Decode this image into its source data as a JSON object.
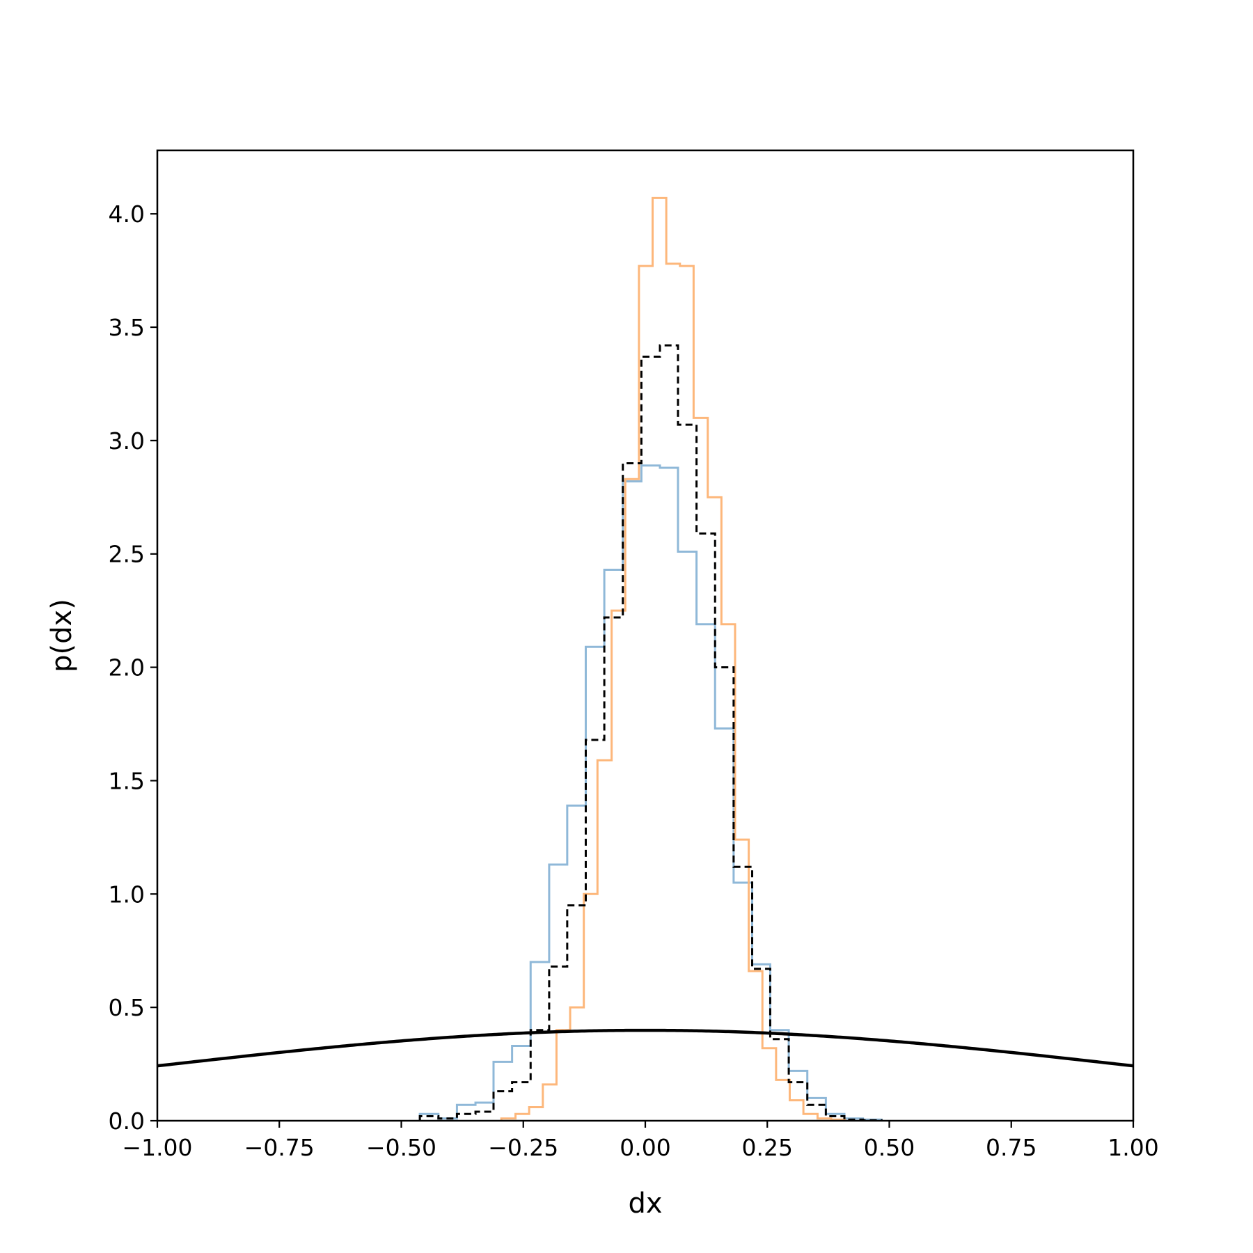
{
  "chart_data": {
    "type": "histogram",
    "title": "",
    "xlabel": "dx",
    "ylabel": "p(dx)",
    "xlim": [
      -1.0,
      1.0
    ],
    "ylim": [
      0.0,
      4.28
    ],
    "grid": false,
    "legend": "none",
    "xticks": [
      "−1.00",
      "−0.75",
      "−0.50",
      "−0.25",
      "0.00",
      "0.25",
      "0.50",
      "0.75",
      "1.00"
    ],
    "xtick_values": [
      -1.0,
      -0.75,
      -0.5,
      -0.25,
      0.0,
      0.25,
      0.5,
      0.75,
      1.0
    ],
    "yticks": [
      "0.0",
      "0.5",
      "1.0",
      "1.5",
      "2.0",
      "2.5",
      "3.0",
      "3.5",
      "4.0"
    ],
    "ytick_values": [
      0.0,
      0.5,
      1.0,
      1.5,
      2.0,
      2.5,
      3.0,
      3.5,
      4.0
    ],
    "series": [
      {
        "kind": "step",
        "color": "#8fb8d8",
        "style": "solid",
        "edges": [
          -0.462,
          -0.424,
          -0.386,
          -0.348,
          -0.311,
          -0.273,
          -0.235,
          -0.197,
          -0.16,
          -0.122,
          -0.084,
          -0.046,
          -0.008,
          0.03,
          0.067,
          0.105,
          0.143,
          0.181,
          0.219,
          0.256,
          0.294,
          0.332,
          0.37,
          0.408,
          0.446,
          0.484
        ],
        "values": [
          0.03,
          0.01,
          0.07,
          0.08,
          0.26,
          0.33,
          0.7,
          1.13,
          1.39,
          2.09,
          2.43,
          2.82,
          2.89,
          2.88,
          2.51,
          2.19,
          1.73,
          1.05,
          0.69,
          0.4,
          0.22,
          0.1,
          0.03,
          0.01,
          0.005
        ]
      },
      {
        "kind": "step",
        "color": "#fdb77b",
        "style": "solid",
        "edges": [
          -0.295,
          -0.266,
          -0.238,
          -0.21,
          -0.182,
          -0.154,
          -0.126,
          -0.098,
          -0.069,
          -0.041,
          -0.013,
          0.015,
          0.043,
          0.071,
          0.099,
          0.128,
          0.156,
          0.184,
          0.212,
          0.24,
          0.268,
          0.296,
          0.324,
          0.353,
          0.381,
          0.409
        ],
        "values": [
          0.01,
          0.03,
          0.06,
          0.16,
          0.4,
          0.5,
          1.0,
          1.59,
          2.25,
          2.83,
          3.77,
          4.07,
          3.78,
          3.77,
          3.1,
          2.75,
          2.19,
          1.24,
          0.66,
          0.32,
          0.18,
          0.09,
          0.03,
          0.01,
          0.005
        ]
      },
      {
        "kind": "step",
        "color": "#000000",
        "style": "dashed",
        "edges": [
          -0.462,
          -0.424,
          -0.386,
          -0.348,
          -0.311,
          -0.273,
          -0.235,
          -0.197,
          -0.16,
          -0.122,
          -0.084,
          -0.046,
          -0.008,
          0.03,
          0.067,
          0.105,
          0.143,
          0.181,
          0.219,
          0.256,
          0.294,
          0.332,
          0.37,
          0.408,
          0.446,
          0.484
        ],
        "values": [
          0.02,
          0.01,
          0.03,
          0.04,
          0.13,
          0.17,
          0.4,
          0.68,
          0.95,
          1.68,
          2.22,
          2.9,
          3.37,
          3.42,
          3.07,
          2.59,
          2.0,
          1.12,
          0.67,
          0.36,
          0.17,
          0.07,
          0.02,
          0.005,
          0.002
        ]
      },
      {
        "kind": "line",
        "color": "#000000",
        "style": "solid",
        "function": "standard normal pdf",
        "mean": 0.0,
        "std": 1.0
      }
    ]
  }
}
